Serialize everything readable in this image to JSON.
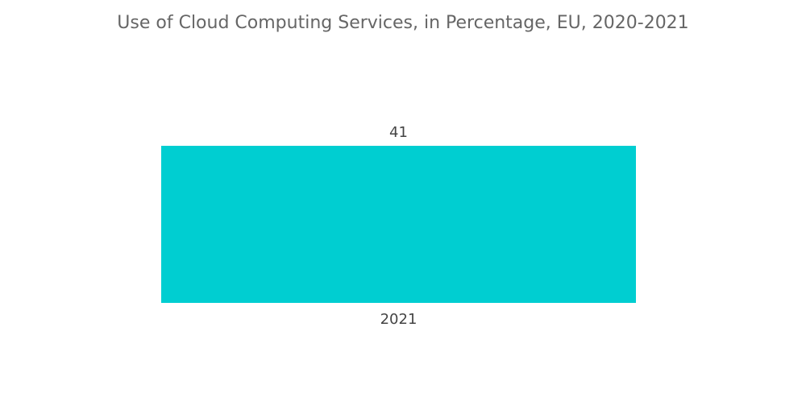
{
  "chart_data": {
    "type": "bar",
    "title": "Use of Cloud Computing Services, in Percentage, EU, 2020-2021",
    "categories": [
      "2021"
    ],
    "values": [
      41
    ],
    "ylim": [
      0,
      41
    ],
    "grid": false,
    "legend": "none",
    "bar_color": "#00CED1"
  }
}
